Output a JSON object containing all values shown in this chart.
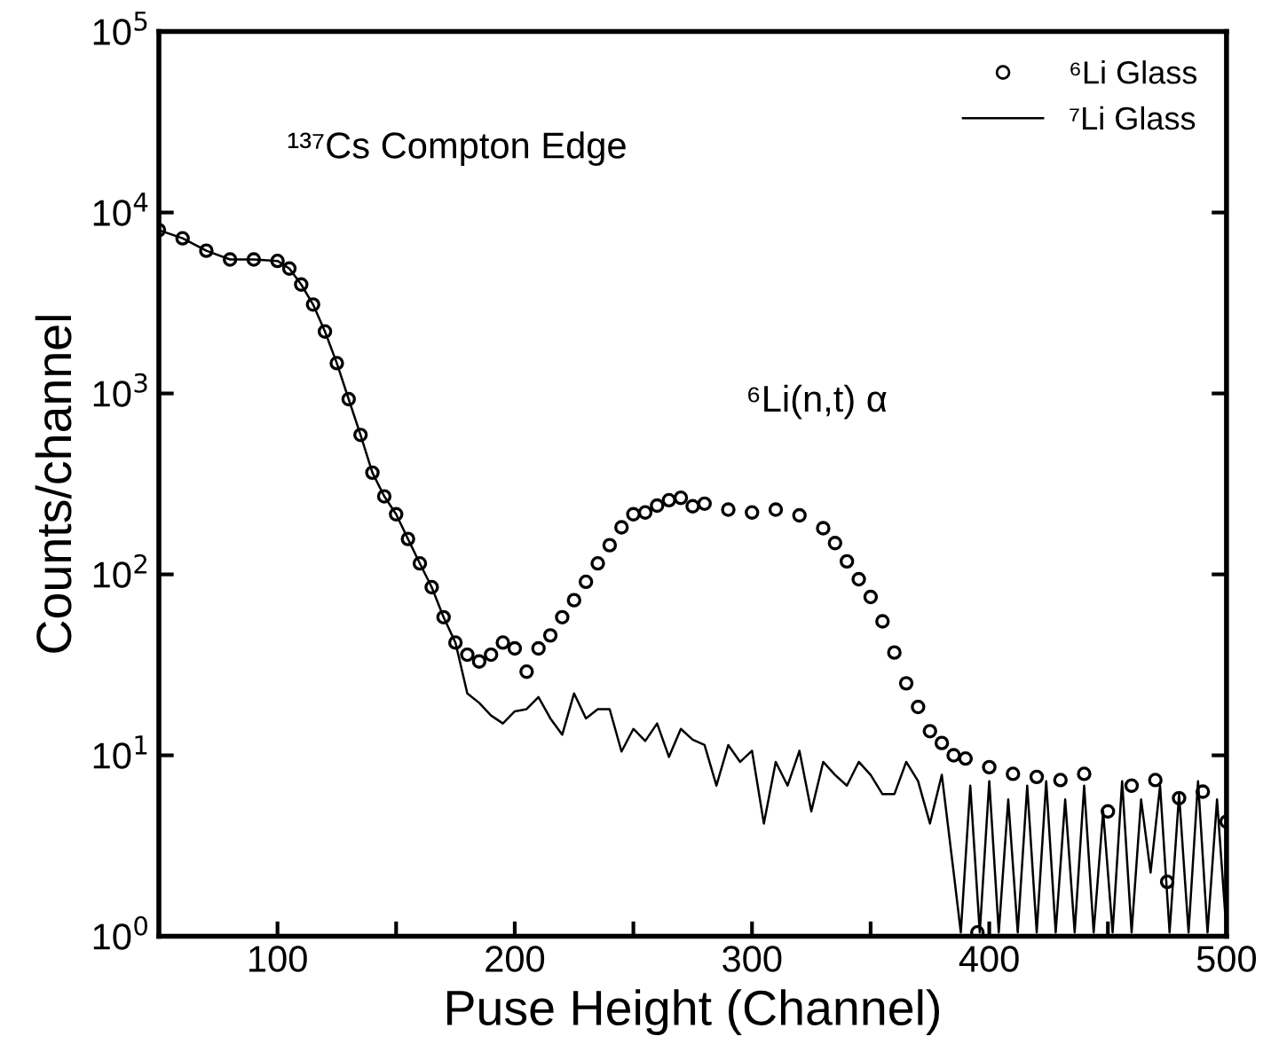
{
  "chart_data": {
    "type": "scatter",
    "xlabel": "Puse Height (Channel)",
    "ylabel": "Counts/channel",
    "log": "y",
    "xlim": [
      50,
      500
    ],
    "ylim": [
      1,
      100000
    ],
    "xticks": [
      100,
      {
        "value": 150,
        "label": null
      },
      200,
      {
        "value": 250,
        "label": null
      },
      300,
      {
        "value": 350,
        "label": null
      },
      400,
      {
        "value": 450,
        "label": null
      },
      500
    ],
    "yticks": [
      {
        "value": 1,
        "label": "10$^{0}$"
      },
      {
        "value": 10,
        "label": "10$^{1}$"
      },
      {
        "value": 100,
        "label": "10$^{2}$"
      },
      {
        "value": 1000,
        "label": "10$^{3}$"
      },
      {
        "value": 10000,
        "label": "10$^{4}$"
      },
      {
        "value": 100000,
        "label": "10$^{5}$"
      }
    ],
    "grid": false,
    "legend": "top right",
    "annotations": [
      "¹³⁷Cs Compton Edge",
      "⁶Li(n,t) α"
    ],
    "series": [
      {
        "name": "⁶Li Glass",
        "marker": "circle",
        "color": "#000000",
        "x": [
          50,
          60,
          70,
          80,
          90,
          100,
          105,
          110,
          115,
          120,
          125,
          130,
          135,
          140,
          145,
          150,
          155,
          160,
          165,
          170,
          175,
          180,
          185,
          190,
          195,
          200,
          205,
          210,
          215,
          220,
          225,
          230,
          235,
          240,
          245,
          250,
          255,
          260,
          265,
          270,
          275,
          280,
          290,
          300,
          310,
          320,
          330,
          335,
          340,
          345,
          350,
          355,
          360,
          365,
          370,
          375,
          380,
          385,
          390,
          395,
          400,
          410,
          420,
          430,
          440,
          450,
          460,
          470,
          475,
          480,
          490,
          500
        ],
        "values": [
          8000,
          7200,
          6150,
          5500,
          5500,
          5400,
          4900,
          4000,
          3100,
          2200,
          1470,
          930,
          590,
          365,
          270,
          215,
          157,
          115,
          85,
          58,
          42,
          36,
          33,
          36,
          42,
          39,
          29,
          39,
          46,
          58,
          72,
          91,
          115,
          145,
          182,
          215,
          220,
          240,
          257,
          265,
          238,
          246,
          228,
          220,
          228,
          212,
          180,
          149,
          118,
          94,
          75,
          55,
          37,
          25,
          18.5,
          13.6,
          11.7,
          10,
          9.6,
          1.05,
          8.6,
          7.9,
          7.6,
          7.3,
          7.9,
          4.9,
          6.8,
          7.3,
          2.0,
          5.8,
          6.3,
          4.3
        ]
      },
      {
        "name": "⁷Li Glass",
        "type": "line",
        "marker": "none",
        "line_style": "solid",
        "color": "#000000",
        "x": [
          50,
          60,
          70,
          80,
          90,
          100,
          105,
          110,
          115,
          120,
          125,
          130,
          135,
          140,
          145,
          150,
          155,
          160,
          165,
          170,
          175,
          180,
          185,
          190,
          195,
          200,
          205,
          210,
          215,
          220,
          225,
          230,
          235,
          240,
          245,
          250,
          255,
          260,
          265,
          270,
          275,
          280,
          285,
          290,
          295,
          300,
          305,
          310,
          315,
          320,
          325,
          330,
          335,
          340,
          345,
          350,
          355,
          360,
          365,
          370,
          375,
          380,
          385,
          388,
          392,
          396,
          400,
          404,
          408,
          412,
          416,
          420,
          424,
          428,
          432,
          436,
          440,
          444,
          448,
          452,
          456,
          460,
          464,
          468,
          472,
          476,
          480,
          484,
          488,
          492,
          496,
          500
        ],
        "values": [
          8000,
          7200,
          6150,
          5500,
          5500,
          5400,
          4900,
          4000,
          3100,
          2200,
          1470,
          930,
          590,
          365,
          270,
          215,
          157,
          115,
          85,
          58,
          42,
          22,
          19.5,
          16.6,
          15,
          17.5,
          18,
          21,
          16,
          13,
          22,
          16,
          18,
          18,
          10.5,
          14,
          12,
          15,
          9.8,
          14,
          12.2,
          11.4,
          6.8,
          11.4,
          9.2,
          10.6,
          4.2,
          9.2,
          6.8,
          10.6,
          4.9,
          9.2,
          7.8,
          6.8,
          9.2,
          7.8,
          6.1,
          6.1,
          9.2,
          7.2,
          4.2,
          7.8,
          2.25,
          1.05,
          6.8,
          1.05,
          7.2,
          1.05,
          5.7,
          1.05,
          6.8,
          1.05,
          7.2,
          1.05,
          5.7,
          1.05,
          6.8,
          1.05,
          4.9,
          1.05,
          7.2,
          1.05,
          5.7,
          2.25,
          6.8,
          1.05,
          6.1,
          1.05,
          7.2,
          1.05,
          5.7,
          1.05
        ]
      }
    ]
  }
}
